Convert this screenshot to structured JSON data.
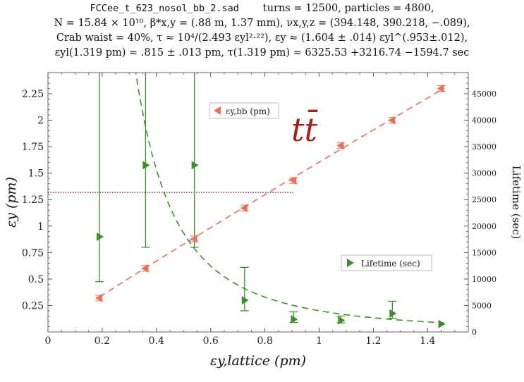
{
  "header": {
    "line1_file": "FCCee_t_623_nosol_bb_2.sad",
    "line1_params": "turns = 12500, particles = 4800,",
    "line2": "N = 15.84 × 10¹⁰, β*x,y = (.88 m, 1.37 mm), νx,y,z = (394.148, 390.218, −.089),",
    "line3": "Crab waist = 40%, τ ≈ 10⁴/(2.493 εyl²·²²), εy ≈ (1.604 ± .014) εyl^(.953±.012),",
    "line4": "εyl(1.319 pm) ≈ .815 ± .013 pm, τ(1.319 pm) ≈ 6325.53 +3216.74 −1594.7 sec"
  },
  "annotation": {
    "text": "tt̄",
    "color": "#a3201c"
  },
  "colors": {
    "emittance": "#e8715a",
    "lifetime": "#3e8e2e",
    "reference": "#7a1f3a"
  },
  "chart_data": {
    "type": "scatter",
    "xlabel": "εy,lattice (pm)",
    "ylabel_left": "εy (pm)",
    "ylabel_right": "Lifetime (sec)",
    "xlim": [
      0,
      1.55
    ],
    "ylim_left": [
      0,
      2.45
    ],
    "ylim_right": [
      0,
      49000
    ],
    "xticks": [
      0,
      0.2,
      0.4,
      0.6,
      0.8,
      1,
      1.2,
      1.4
    ],
    "xtick_labels": [
      "0",
      "0.2",
      "0.4",
      "0.6",
      "0.8",
      "1",
      "1.2",
      "1.4"
    ],
    "yticks_left": [
      0.25,
      0.5,
      0.75,
      1,
      1.25,
      1.5,
      1.75,
      2,
      2.25
    ],
    "ytick_labels_left": [
      "0.25",
      "0.5",
      "0.75",
      "1",
      "1.25",
      "1.5",
      "1.75",
      "2",
      "2.25"
    ],
    "yticks_right": [
      5000,
      10000,
      15000,
      20000,
      25000,
      30000,
      35000,
      40000,
      45000
    ],
    "ytick_labels_right": [
      "5000",
      "10000",
      "15000",
      "20000",
      "25000",
      "30000",
      "35000",
      "40000",
      "45000"
    ],
    "reference_line": {
      "y": 1.319,
      "x_end": 0.906
    },
    "series": [
      {
        "name": "εy,bb (pm)",
        "axis": "left",
        "marker": "left-triangle",
        "x": [
          0.19,
          0.36,
          0.54,
          0.725,
          0.906,
          1.08,
          1.27,
          1.45
        ],
        "y": [
          0.32,
          0.6,
          0.88,
          1.17,
          1.43,
          1.76,
          2.0,
          2.3
        ]
      },
      {
        "name": "Lifetime (sec)",
        "axis": "right",
        "marker": "right-triangle",
        "x": [
          0.19,
          0.36,
          0.54,
          0.725,
          0.906,
          1.08,
          1.27,
          1.45
        ],
        "y": [
          18000,
          31500,
          31500,
          6000,
          2400,
          2200,
          3500,
          1500
        ],
        "err_low": [
          9500,
          16000,
          16000,
          4000,
          1800,
          1700,
          2600,
          null
        ],
        "err_high": [
          50000,
          50000,
          50000,
          12200,
          3800,
          3000,
          5800,
          null
        ]
      }
    ],
    "fits": [
      {
        "series": "εy,bb (pm)",
        "formula": "1.604 * x^0.953"
      },
      {
        "series": "Lifetime (sec)",
        "formula": "10000 / (2.493 * x^2.22)"
      }
    ]
  }
}
